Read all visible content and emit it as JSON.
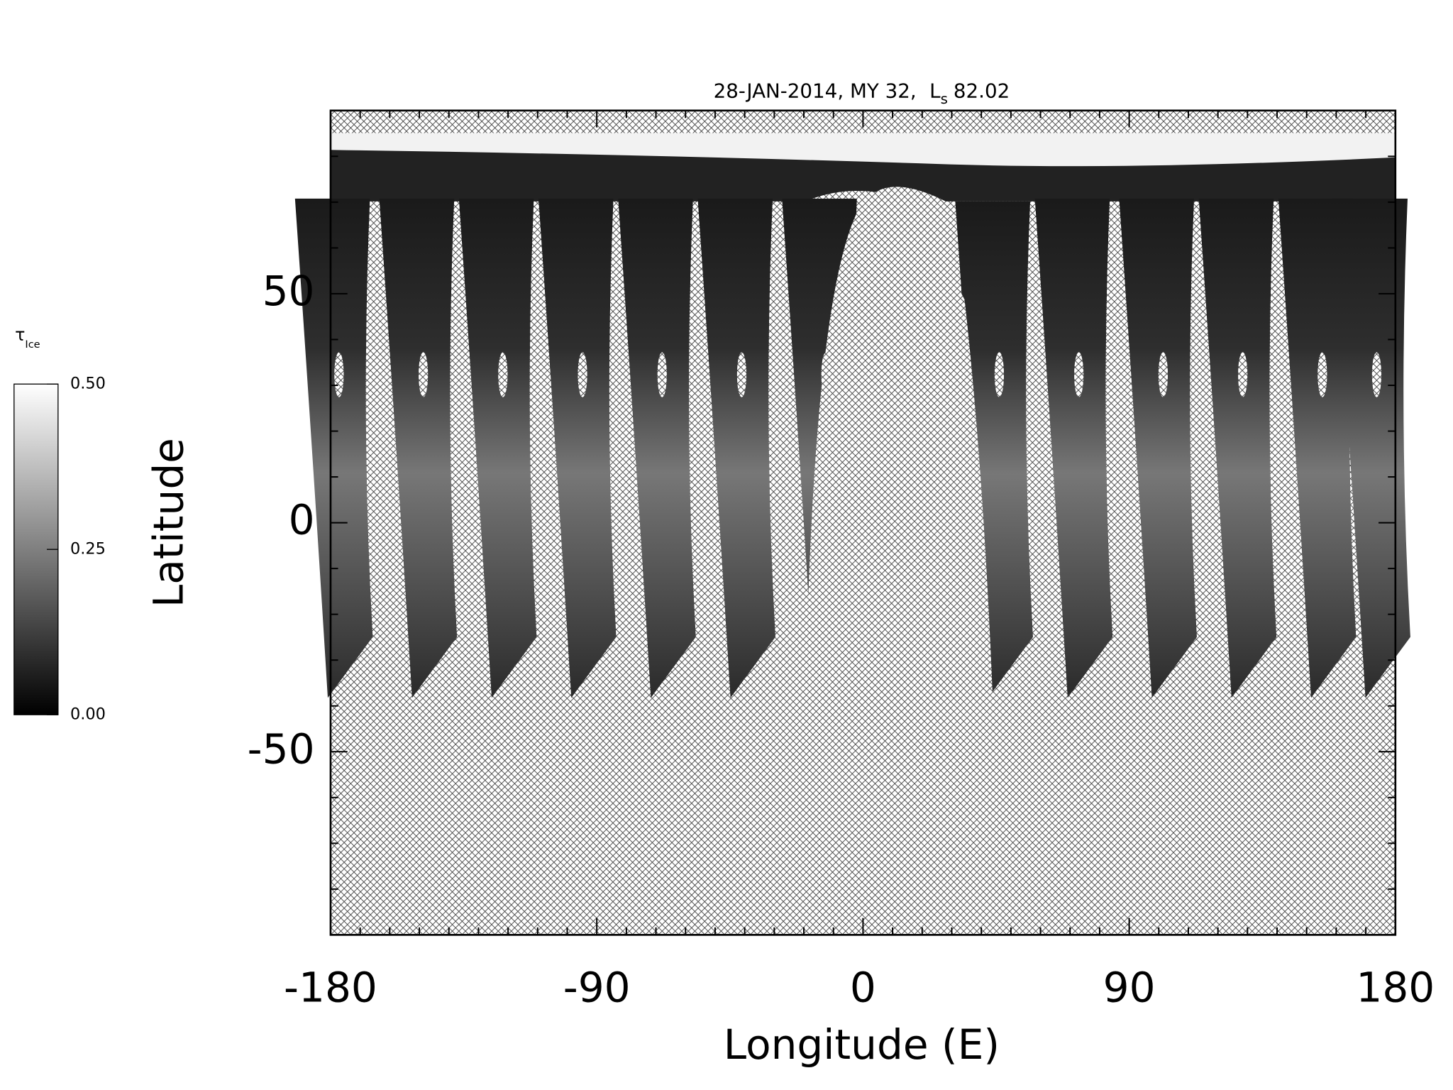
{
  "chart_data": {
    "type": "map",
    "title": {
      "text": "28-JAN-2014, MY 32,",
      "symbol": "L",
      "subscript": "s",
      "value": "82.02"
    },
    "xlabel": "Longitude (E)",
    "ylabel": "Latitude",
    "xlim": [
      -180,
      180
    ],
    "ylim": [
      -90,
      90
    ],
    "xticks": [
      -180,
      -90,
      0,
      90,
      180
    ],
    "yticks": [
      -50,
      0,
      50
    ],
    "xminorticks": [
      -170,
      -160,
      -150,
      -140,
      -130,
      -120,
      -110,
      -100,
      -80,
      -70,
      -60,
      -50,
      -40,
      -30,
      -20,
      -10,
      10,
      20,
      30,
      40,
      50,
      60,
      70,
      80,
      100,
      110,
      120,
      130,
      140,
      150,
      160,
      170
    ],
    "yminorticks": [
      -80,
      -70,
      -60,
      -40,
      -30,
      -20,
      -10,
      10,
      20,
      30,
      40,
      60,
      70,
      80
    ],
    "colorbar": {
      "symbol": "τ",
      "subscript": "Ice",
      "lim": [
        0,
        0.5
      ],
      "ticks": [
        {
          "value": 0,
          "label": "0.00"
        },
        0.25,
        {
          "value": 0.5,
          "label": "0.50"
        }
      ]
    }
  }
}
